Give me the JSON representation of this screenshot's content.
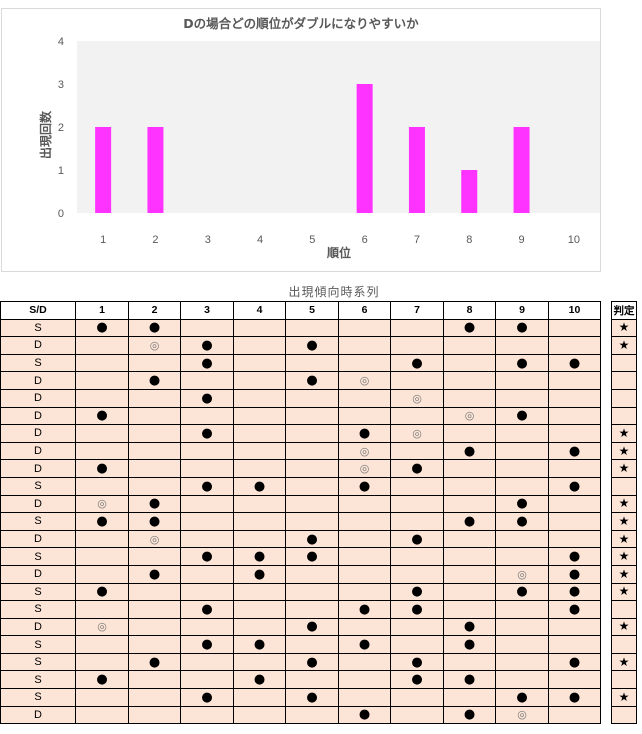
{
  "chart_data": {
    "type": "bar",
    "title": "Dの場合どの順位がダブルになりやすいか",
    "xlabel": "順位",
    "ylabel": "出現回数",
    "categories": [
      "1",
      "2",
      "3",
      "4",
      "5",
      "6",
      "7",
      "8",
      "9",
      "10"
    ],
    "values": [
      2,
      2,
      0,
      0,
      0,
      3,
      2,
      1,
      2,
      0
    ],
    "ylim": [
      0,
      4
    ],
    "yticks": [
      "0",
      "1",
      "2",
      "3",
      "4"
    ],
    "bar_color": "#ff33ff",
    "plot_background": "#f2f2f2",
    "gridlines": false,
    "legend": "none"
  },
  "table": {
    "caption": "出現傾向時系列",
    "headers": [
      "S/D",
      "1",
      "2",
      "3",
      "4",
      "5",
      "6",
      "7",
      "8",
      "9",
      "10"
    ],
    "judge_header": "判定",
    "marks": {
      "dot": "●",
      "ring": "◎",
      "star": "★"
    },
    "rows": [
      {
        "sd": "S",
        "cells": [
          "●",
          "●",
          "",
          "",
          "",
          "",
          "",
          "●",
          "●",
          ""
        ],
        "judge": "★"
      },
      {
        "sd": "D",
        "cells": [
          "",
          "◎",
          "●",
          "",
          "●",
          "",
          "",
          "",
          "",
          ""
        ],
        "judge": "★"
      },
      {
        "sd": "S",
        "cells": [
          "",
          "",
          "●",
          "",
          "",
          "",
          "●",
          "",
          "●",
          "●"
        ],
        "judge": ""
      },
      {
        "sd": "D",
        "cells": [
          "",
          "●",
          "",
          "",
          "●",
          "◎",
          "",
          "",
          "",
          ""
        ],
        "judge": ""
      },
      {
        "sd": "D",
        "cells": [
          "",
          "",
          "●",
          "",
          "",
          "",
          "◎",
          "",
          "",
          ""
        ],
        "judge": ""
      },
      {
        "sd": "D",
        "cells": [
          "●",
          "",
          "",
          "",
          "",
          "",
          "",
          "◎",
          "●",
          ""
        ],
        "judge": ""
      },
      {
        "sd": "D",
        "cells": [
          "",
          "",
          "●",
          "",
          "",
          "●",
          "◎",
          "",
          "",
          ""
        ],
        "judge": "★"
      },
      {
        "sd": "D",
        "cells": [
          "",
          "",
          "",
          "",
          "",
          "◎",
          "",
          "●",
          "",
          "●"
        ],
        "judge": "★"
      },
      {
        "sd": "D",
        "cells": [
          "●",
          "",
          "",
          "",
          "",
          "◎",
          "●",
          "",
          "",
          ""
        ],
        "judge": "★"
      },
      {
        "sd": "S",
        "cells": [
          "",
          "",
          "●",
          "●",
          "",
          "●",
          "",
          "",
          "",
          "●"
        ],
        "judge": ""
      },
      {
        "sd": "D",
        "cells": [
          "◎",
          "●",
          "",
          "",
          "",
          "",
          "",
          "",
          "●",
          ""
        ],
        "judge": "★"
      },
      {
        "sd": "S",
        "cells": [
          "●",
          "●",
          "",
          "",
          "",
          "",
          "",
          "●",
          "●",
          ""
        ],
        "judge": "★"
      },
      {
        "sd": "D",
        "cells": [
          "",
          "◎",
          "",
          "",
          "●",
          "",
          "●",
          "",
          "",
          ""
        ],
        "judge": "★"
      },
      {
        "sd": "S",
        "cells": [
          "",
          "",
          "●",
          "●",
          "●",
          "",
          "",
          "",
          "",
          "●"
        ],
        "judge": "★"
      },
      {
        "sd": "D",
        "cells": [
          "",
          "●",
          "",
          "●",
          "",
          "",
          "",
          "",
          "◎",
          "●"
        ],
        "judge": "★"
      },
      {
        "sd": "S",
        "cells": [
          "●",
          "",
          "",
          "",
          "",
          "",
          "●",
          "",
          "●",
          "●"
        ],
        "judge": "★"
      },
      {
        "sd": "S",
        "cells": [
          "",
          "",
          "●",
          "",
          "",
          "●",
          "●",
          "",
          "",
          "●"
        ],
        "judge": ""
      },
      {
        "sd": "D",
        "cells": [
          "◎",
          "",
          "",
          "",
          "●",
          "",
          "",
          "●",
          "",
          ""
        ],
        "judge": "★"
      },
      {
        "sd": "S",
        "cells": [
          "",
          "",
          "●",
          "●",
          "",
          "●",
          "",
          "●",
          "",
          ""
        ],
        "judge": ""
      },
      {
        "sd": "S",
        "cells": [
          "",
          "●",
          "",
          "",
          "●",
          "",
          "●",
          "",
          "",
          "●"
        ],
        "judge": "★"
      },
      {
        "sd": "S",
        "cells": [
          "●",
          "",
          "",
          "●",
          "",
          "",
          "●",
          "●",
          "",
          ""
        ],
        "judge": ""
      },
      {
        "sd": "S",
        "cells": [
          "",
          "",
          "●",
          "",
          "●",
          "",
          "",
          "",
          "●",
          "●"
        ],
        "judge": "★"
      },
      {
        "sd": "D",
        "cells": [
          "",
          "",
          "",
          "",
          "",
          "●",
          "",
          "●",
          "◎",
          ""
        ],
        "judge": ""
      }
    ]
  }
}
